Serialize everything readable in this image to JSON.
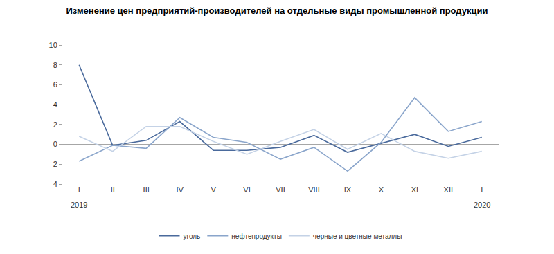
{
  "chart_data": {
    "type": "line",
    "title": "Изменение цен предприятий-производителей на отдельные виды промышленной продукции",
    "categories": [
      "I",
      "II",
      "III",
      "IV",
      "V",
      "VI",
      "VII",
      "VIII",
      "IX",
      "X",
      "XI",
      "XII",
      "I"
    ],
    "annotations": [
      "2019",
      "2020"
    ],
    "series": [
      {
        "name": "уголь",
        "color": "#4a6a9c",
        "values": [
          8.0,
          -0.1,
          0.4,
          2.3,
          -0.6,
          -0.6,
          -0.3,
          0.9,
          -0.8,
          0.1,
          1.0,
          -0.2,
          0.7
        ]
      },
      {
        "name": "нефтепродукты",
        "color": "#8aa5cb",
        "values": [
          -1.7,
          -0.1,
          -0.4,
          2.7,
          0.7,
          0.2,
          -1.5,
          -0.3,
          -2.7,
          0.2,
          4.7,
          1.3,
          2.3
        ]
      },
      {
        "name": "черные и цветные металлы",
        "color": "#c4d2e6",
        "values": [
          0.8,
          -0.7,
          1.8,
          1.8,
          0.3,
          -1.0,
          0.3,
          1.5,
          -0.5,
          1.1,
          -0.7,
          -1.4,
          -0.7
        ]
      }
    ],
    "ylim": [
      -4,
      10
    ],
    "yticks": [
      -4,
      -2,
      0,
      2,
      4,
      6,
      8,
      10
    ],
    "grid": false,
    "legend": "bottom"
  }
}
